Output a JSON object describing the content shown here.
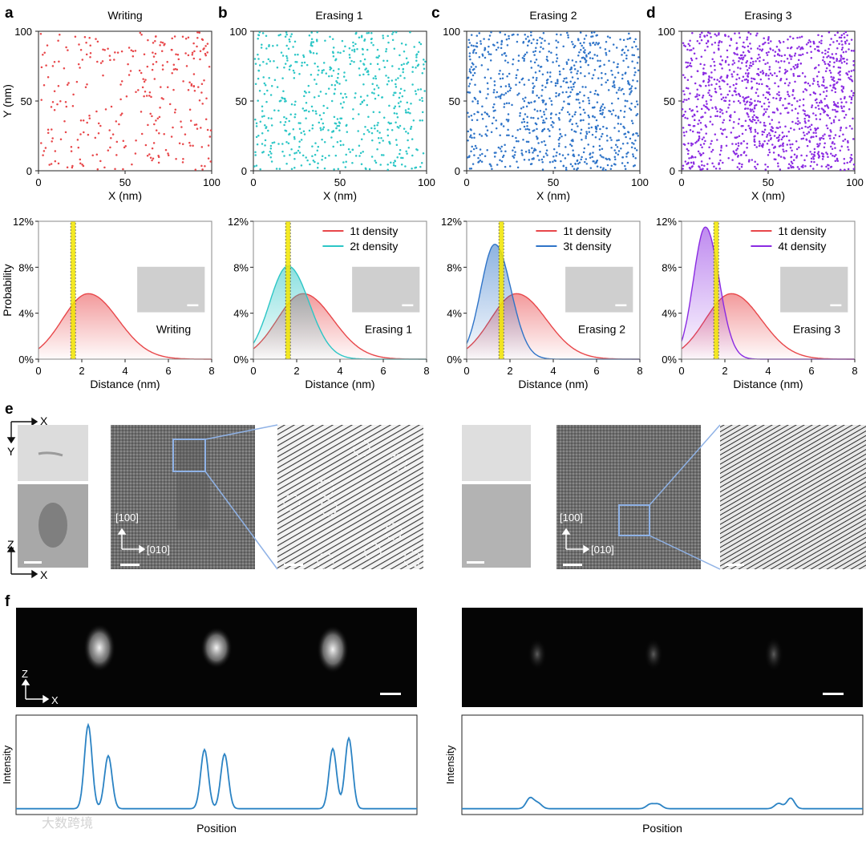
{
  "colors": {
    "writing": "#e8474a",
    "erasing1": "#2cc6c6",
    "erasing2": "#2f74c8",
    "erasing3": "#8a2be2",
    "line": "#2b83c4",
    "band": "#f2e600",
    "scale": "#ffffff"
  },
  "panels": [
    {
      "letter": "a",
      "title": "Writing",
      "color_key": "writing",
      "points": 300
    },
    {
      "letter": "b",
      "title": "Erasing 1",
      "color_key": "erasing1",
      "points": 600
    },
    {
      "letter": "c",
      "title": "Erasing 2",
      "color_key": "erasing2",
      "points": 900
    },
    {
      "letter": "d",
      "title": "Erasing 3",
      "color_key": "erasing3",
      "points": 1200
    }
  ],
  "labels": {
    "e": "e",
    "f": "f",
    "x_nm": "X (nm)",
    "y_nm": "Y (nm)",
    "distance": "Distance (nm)",
    "probability": "Probability",
    "intensity": "Intensity",
    "position": "Position",
    "axis_x": "X",
    "axis_y": "Y",
    "axis_z": "Z",
    "dir_100": "[100]",
    "dir_010": "[010]",
    "watermark": "大数跨境"
  },
  "chart_data": [
    {
      "type": "scatter",
      "title": "Writing",
      "xlabel": "X (nm)",
      "ylabel": "Y (nm)",
      "xlim": [
        0,
        100
      ],
      "ylim": [
        0,
        100
      ],
      "xticks": [
        "0",
        "50",
        "100"
      ],
      "yticks": [
        "0",
        "50",
        "100"
      ],
      "approx_points": 300
    },
    {
      "type": "scatter",
      "title": "Erasing 1",
      "xlabel": "X (nm)",
      "ylabel": "",
      "xlim": [
        0,
        100
      ],
      "ylim": [
        0,
        100
      ],
      "xticks": [
        "0",
        "50",
        "100"
      ],
      "yticks": [
        "0",
        "50",
        "100"
      ],
      "approx_points": 600
    },
    {
      "type": "scatter",
      "title": "Erasing 2",
      "xlabel": "X (nm)",
      "ylabel": "",
      "xlim": [
        0,
        100
      ],
      "ylim": [
        0,
        100
      ],
      "xticks": [
        "0",
        "50",
        "100"
      ],
      "yticks": [
        "0",
        "50",
        "100"
      ],
      "approx_points": 900
    },
    {
      "type": "scatter",
      "title": "Erasing 3",
      "xlabel": "X (nm)",
      "ylabel": "",
      "xlim": [
        0,
        100
      ],
      "ylim": [
        0,
        100
      ],
      "xticks": [
        "0",
        "50",
        "100"
      ],
      "yticks": [
        "0",
        "50",
        "100"
      ],
      "approx_points": 1200
    },
    {
      "type": "area",
      "xlabel": "Distance (nm)",
      "ylabel": "Probability",
      "xlim": [
        0,
        8
      ],
      "ylim": [
        0,
        12
      ],
      "xticks": [
        "0",
        "2",
        "4",
        "6",
        "8"
      ],
      "yticks": [
        "0%",
        "4%",
        "8%",
        "12%"
      ],
      "band_x": 1.6,
      "inset_label": "Writing",
      "legend": [],
      "series": [
        {
          "name": "1t density",
          "peak_x": 2.3,
          "peak_y": 5.7,
          "sigma": 1.2,
          "color_key": "writing"
        }
      ]
    },
    {
      "type": "area",
      "xlabel": "Distance (nm)",
      "ylabel": "",
      "xlim": [
        0,
        8
      ],
      "ylim": [
        0,
        12
      ],
      "xticks": [
        "0",
        "2",
        "4",
        "6",
        "8"
      ],
      "yticks": [
        "0%",
        "4%",
        "8%",
        "12%"
      ],
      "band_x": 1.6,
      "inset_label": "Erasing 1",
      "legend": [
        "1t density",
        "2t density"
      ],
      "series": [
        {
          "name": "1t density",
          "peak_x": 2.3,
          "peak_y": 5.7,
          "sigma": 1.2,
          "color_key": "writing"
        },
        {
          "name": "2t density",
          "peak_x": 1.6,
          "peak_y": 8.1,
          "sigma": 0.85,
          "color_key": "erasing1"
        }
      ]
    },
    {
      "type": "area",
      "xlabel": "Distance (nm)",
      "ylabel": "",
      "xlim": [
        0,
        8
      ],
      "ylim": [
        0,
        12
      ],
      "xticks": [
        "0",
        "2",
        "4",
        "6",
        "8"
      ],
      "yticks": [
        "0%",
        "4%",
        "8%",
        "12%"
      ],
      "band_x": 1.6,
      "inset_label": "Erasing 2",
      "legend": [
        "1t density",
        "3t density"
      ],
      "series": [
        {
          "name": "1t density",
          "peak_x": 2.3,
          "peak_y": 5.7,
          "sigma": 1.2,
          "color_key": "writing"
        },
        {
          "name": "3t density",
          "peak_x": 1.3,
          "peak_y": 10,
          "sigma": 0.65,
          "color_key": "erasing2"
        }
      ]
    },
    {
      "type": "area",
      "xlabel": "Distance (nm)",
      "ylabel": "",
      "xlim": [
        0,
        8
      ],
      "ylim": [
        0,
        12
      ],
      "xticks": [
        "0",
        "2",
        "4",
        "6",
        "8"
      ],
      "yticks": [
        "0%",
        "4%",
        "8%",
        "12%"
      ],
      "band_x": 1.6,
      "inset_label": "Erasing 3",
      "legend": [
        "1t density",
        "4t density"
      ],
      "series": [
        {
          "name": "1t density",
          "peak_x": 2.3,
          "peak_y": 5.7,
          "sigma": 1.2,
          "color_key": "writing"
        },
        {
          "name": "4t density",
          "peak_x": 1.1,
          "peak_y": 11.5,
          "sigma": 0.55,
          "color_key": "erasing3"
        }
      ]
    },
    {
      "type": "line",
      "xlabel": "Position",
      "ylabel": "Intensity",
      "peaks": [
        {
          "x": 0.18,
          "h": 0.95
        },
        {
          "x": 0.23,
          "h": 0.6
        },
        {
          "x": 0.47,
          "h": 0.67
        },
        {
          "x": 0.52,
          "h": 0.62
        },
        {
          "x": 0.79,
          "h": 0.68
        },
        {
          "x": 0.83,
          "h": 0.8
        }
      ]
    },
    {
      "type": "line",
      "xlabel": "Position",
      "ylabel": "Intensity",
      "peaks": [
        {
          "x": 0.17,
          "h": 0.12
        },
        {
          "x": 0.19,
          "h": 0.06
        },
        {
          "x": 0.47,
          "h": 0.05
        },
        {
          "x": 0.49,
          "h": 0.05
        },
        {
          "x": 0.79,
          "h": 0.06
        },
        {
          "x": 0.82,
          "h": 0.12
        }
      ]
    }
  ]
}
